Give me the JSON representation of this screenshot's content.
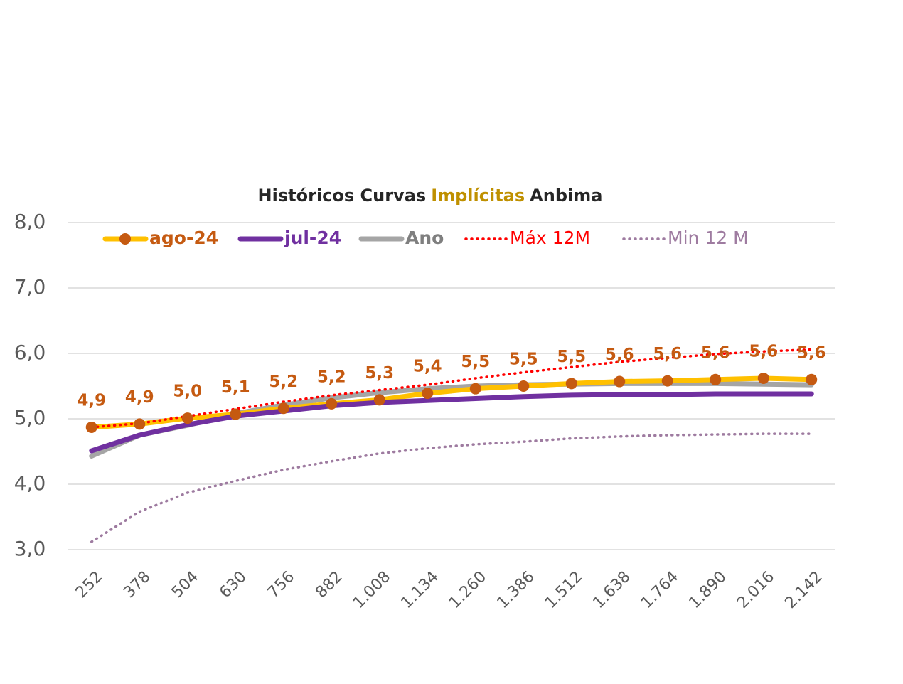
{
  "chart_data": {
    "type": "line",
    "title": [
      "Históricos Curvas",
      "Implícitas",
      "Anbima"
    ],
    "title_colors": [
      "#262626",
      "#BF9000",
      "#262626"
    ],
    "categories": [
      "252",
      "378",
      "504",
      "630",
      "756",
      "882",
      "1.008",
      "1.134",
      "1.260",
      "1.386",
      "1.512",
      "1.638",
      "1.764",
      "1.890",
      "2.016",
      "2.142"
    ],
    "ylim": [
      3,
      8
    ],
    "yticks": [
      {
        "value": 3,
        "label": "3,0"
      },
      {
        "value": 4,
        "label": "4,0"
      },
      {
        "value": 5,
        "label": "5,0"
      },
      {
        "value": 6,
        "label": "6,0"
      },
      {
        "value": 7,
        "label": "7,0"
      },
      {
        "value": 8,
        "label": "8,0"
      }
    ],
    "grid": true,
    "legend": "top",
    "series": [
      {
        "name": "ago-24",
        "color": "#FFC000",
        "marker_color": "#C55A11",
        "style": "solid-marker",
        "values": [
          4.87,
          4.92,
          5.01,
          5.07,
          5.16,
          5.23,
          5.29,
          5.39,
          5.46,
          5.5,
          5.54,
          5.57,
          5.58,
          5.6,
          5.62,
          5.6
        ],
        "value_labels": [
          "4,9",
          "4,9",
          "5,0",
          "5,1",
          "5,2",
          "5,2",
          "5,3",
          "5,4",
          "5,5",
          "5,5",
          "5,5",
          "5,6",
          "5,6",
          "5,6",
          "5,6",
          "5,6"
        ]
      },
      {
        "name": "jul-24",
        "color": "#7030A0",
        "style": "solid",
        "values": [
          4.51,
          4.75,
          4.91,
          5.04,
          5.12,
          5.2,
          5.25,
          5.28,
          5.31,
          5.34,
          5.36,
          5.37,
          5.37,
          5.38,
          5.38,
          5.38
        ]
      },
      {
        "name": "Ano",
        "color": "#A5A5A5",
        "style": "solid",
        "values": [
          4.43,
          4.75,
          4.9,
          5.08,
          5.21,
          5.32,
          5.4,
          5.46,
          5.5,
          5.52,
          5.53,
          5.54,
          5.54,
          5.54,
          5.53,
          5.52
        ]
      },
      {
        "name": "Máx 12M",
        "color": "#FF0000",
        "style": "dotted",
        "values": [
          4.87,
          4.93,
          5.04,
          5.15,
          5.26,
          5.36,
          5.44,
          5.52,
          5.62,
          5.71,
          5.79,
          5.87,
          5.93,
          5.99,
          6.03,
          6.06
        ]
      },
      {
        "name": "Min 12 M",
        "color": "#9E7BA0",
        "style": "dotted",
        "values": [
          3.12,
          3.58,
          3.87,
          4.05,
          4.22,
          4.35,
          4.47,
          4.55,
          4.61,
          4.65,
          4.7,
          4.73,
          4.75,
          4.76,
          4.77,
          4.77
        ]
      }
    ]
  }
}
